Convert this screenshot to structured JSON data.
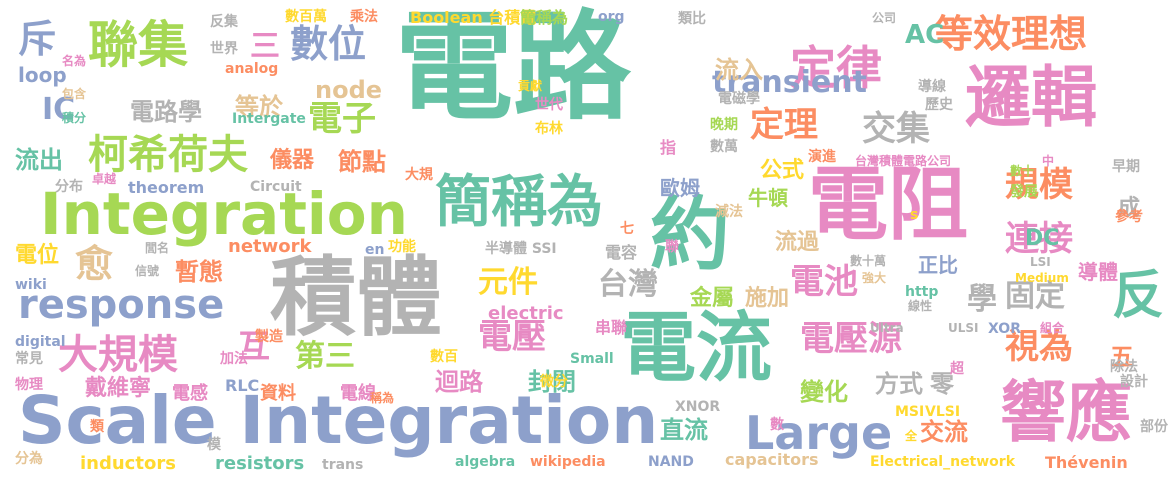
{
  "palette": {
    "teal": "#66c2a5",
    "orange": "#fc8d62",
    "blue": "#8da0cb",
    "pink": "#e78ac3",
    "green": "#a6d854",
    "yellow": "#ffd92f",
    "tan": "#e5c494",
    "gray": "#b3b3b3"
  },
  "words": [
    {
      "text": "電路",
      "color": "teal"
    },
    {
      "text": "積體",
      "color": "gray"
    },
    {
      "text": "Scale Integration",
      "color": "blue"
    },
    {
      "text": "Integration",
      "color": "green"
    },
    {
      "text": "邏輯",
      "color": "pink"
    },
    {
      "text": "電阻",
      "color": "pink"
    },
    {
      "text": "電流",
      "color": "teal"
    },
    {
      "text": "簡稱為",
      "color": "teal"
    },
    {
      "text": "約",
      "color": "teal"
    },
    {
      "text": "響應",
      "color": "pink"
    },
    {
      "text": "response",
      "color": "blue"
    },
    {
      "text": "Large",
      "color": "blue"
    },
    {
      "text": "聯集",
      "color": "green"
    },
    {
      "text": "定律",
      "color": "pink"
    },
    {
      "text": "反",
      "color": "teal"
    },
    {
      "text": "數位",
      "color": "blue"
    },
    {
      "text": "transient",
      "color": "blue"
    },
    {
      "text": "等效理想",
      "color": "orange"
    },
    {
      "text": "柯希荷夫",
      "color": "green"
    },
    {
      "text": "大規模",
      "color": "pink"
    },
    {
      "text": "電子",
      "color": "green"
    },
    {
      "text": "定理",
      "color": "orange"
    },
    {
      "text": "交集",
      "color": "gray"
    },
    {
      "text": "規模",
      "color": "orange"
    },
    {
      "text": "連接",
      "color": "pink"
    },
    {
      "text": "電池",
      "color": "pink"
    },
    {
      "text": "電壓",
      "color": "pink"
    },
    {
      "text": "電壓源",
      "color": "pink"
    },
    {
      "text": "視為",
      "color": "orange"
    },
    {
      "text": "元件",
      "color": "yellow"
    },
    {
      "text": "台灣",
      "color": "gray"
    },
    {
      "text": "學",
      "color": "gray"
    },
    {
      "text": "固定",
      "color": "gray"
    },
    {
      "text": "互",
      "color": "pink"
    },
    {
      "text": "第三",
      "color": "green"
    },
    {
      "text": "愈",
      "color": "tan"
    },
    {
      "text": "AC",
      "color": "teal"
    },
    {
      "text": "IC",
      "color": "blue"
    },
    {
      "text": "DC",
      "color": "teal"
    },
    {
      "text": "node",
      "color": "tan"
    },
    {
      "text": "loop",
      "color": "blue"
    },
    {
      "text": "斥",
      "color": "blue"
    },
    {
      "text": "三",
      "color": "pink"
    },
    {
      "text": "流出",
      "color": "teal"
    },
    {
      "text": "電路學",
      "color": "gray"
    },
    {
      "text": "等於",
      "color": "tan"
    },
    {
      "text": "流入",
      "color": "tan"
    },
    {
      "text": "節點",
      "color": "orange"
    },
    {
      "text": "儀器",
      "color": "orange"
    },
    {
      "text": "電位",
      "color": "yellow"
    },
    {
      "text": "暫態",
      "color": "orange"
    },
    {
      "text": "network",
      "color": "orange"
    },
    {
      "text": "electric",
      "color": "pink"
    },
    {
      "text": "迴路",
      "color": "pink"
    },
    {
      "text": "封閉",
      "color": "teal"
    },
    {
      "text": "變化",
      "color": "green"
    },
    {
      "text": "方式",
      "color": "gray"
    },
    {
      "text": "零",
      "color": "gray"
    },
    {
      "text": "五",
      "color": "orange"
    },
    {
      "text": "直流",
      "color": "teal"
    },
    {
      "text": "交流",
      "color": "orange"
    },
    {
      "text": "導體",
      "color": "pink"
    },
    {
      "text": "施加",
      "color": "tan"
    },
    {
      "text": "金屬",
      "color": "green"
    },
    {
      "text": "流過",
      "color": "tan"
    },
    {
      "text": "正比",
      "color": "blue"
    },
    {
      "text": "牛頓",
      "color": "green"
    },
    {
      "text": "歐姆",
      "color": "blue"
    },
    {
      "text": "公式",
      "color": "yellow"
    },
    {
      "text": "戴維寧",
      "color": "pink"
    },
    {
      "text": "電感",
      "color": "pink"
    },
    {
      "text": "資料",
      "color": "orange"
    },
    {
      "text": "電線",
      "color": "pink"
    },
    {
      "text": "inductors",
      "color": "yellow"
    },
    {
      "text": "resistors",
      "color": "teal"
    },
    {
      "text": "capacitors",
      "color": "tan"
    },
    {
      "text": "Thévenin",
      "color": "orange"
    },
    {
      "text": "Electrical_network",
      "color": "yellow"
    },
    {
      "text": "wikipedia",
      "color": "orange"
    },
    {
      "text": "algebra",
      "color": "teal"
    },
    {
      "text": "NAND",
      "color": "blue"
    },
    {
      "text": "XNOR",
      "color": "gray"
    },
    {
      "text": "trans",
      "color": "gray"
    },
    {
      "text": "分布",
      "color": "gray"
    },
    {
      "text": "theorem",
      "color": "blue"
    },
    {
      "text": "Circuit",
      "color": "gray"
    },
    {
      "text": "串聯",
      "color": "pink"
    },
    {
      "text": "數百",
      "color": "yellow"
    },
    {
      "text": "微分",
      "color": "yellow"
    },
    {
      "text": "Small",
      "color": "teal"
    },
    {
      "text": "電容",
      "color": "gray"
    },
    {
      "text": "半導體 SSI",
      "color": "gray"
    },
    {
      "text": "en",
      "color": "blue"
    },
    {
      "text": "功能",
      "color": "yellow"
    },
    {
      "text": "Boolean 台積電",
      "color": "yellow"
    },
    {
      "text": "簡稱為",
      "color": "green"
    },
    {
      "text": "org",
      "color": "blue"
    },
    {
      "text": "數百萬",
      "color": "yellow"
    },
    {
      "text": "乘法",
      "color": "orange"
    },
    {
      "text": "反集",
      "color": "gray"
    },
    {
      "text": "類比",
      "color": "gray"
    },
    {
      "text": "公司",
      "color": "gray"
    },
    {
      "text": "世界",
      "color": "gray"
    },
    {
      "text": "analog",
      "color": "orange"
    },
    {
      "text": "名為",
      "color": "pink"
    },
    {
      "text": "包含",
      "color": "tan"
    },
    {
      "text": "積分",
      "color": "teal"
    },
    {
      "text": "Intergate",
      "color": "teal"
    },
    {
      "text": "世代",
      "color": "pink"
    },
    {
      "text": "布林",
      "color": "yellow"
    },
    {
      "text": "電磁學",
      "color": "gray"
    },
    {
      "text": "晚期",
      "color": "green"
    },
    {
      "text": "數萬",
      "color": "gray"
    },
    {
      "text": "指",
      "color": "pink"
    },
    {
      "text": "導線",
      "color": "gray"
    },
    {
      "text": "歷史",
      "color": "gray"
    },
    {
      "text": "演進",
      "color": "orange"
    },
    {
      "text": "台灣積體電路公司",
      "color": "pink"
    },
    {
      "text": "中",
      "color": "pink"
    },
    {
      "text": "早期",
      "color": "gray"
    },
    {
      "text": "數十",
      "color": "green"
    },
    {
      "text": "發展",
      "color": "green"
    },
    {
      "text": "成",
      "color": "gray"
    },
    {
      "text": "參考",
      "color": "orange"
    },
    {
      "text": "貢獻",
      "color": "yellow"
    },
    {
      "text": "大規",
      "color": "orange"
    },
    {
      "text": "卓越",
      "color": "pink"
    },
    {
      "text": "減法",
      "color": "tan"
    },
    {
      "text": "七",
      "color": "orange"
    },
    {
      "text": "聯",
      "color": "pink"
    },
    {
      "text": "s",
      "color": "yellow"
    },
    {
      "text": "LSI",
      "color": "gray"
    },
    {
      "text": "數十萬",
      "color": "gray"
    },
    {
      "text": "強大",
      "color": "tan"
    },
    {
      "text": "Medium",
      "color": "yellow"
    },
    {
      "text": "http",
      "color": "teal"
    },
    {
      "text": "線性",
      "color": "gray"
    },
    {
      "text": "Ultra",
      "color": "gray"
    },
    {
      "text": "ULSI",
      "color": "gray"
    },
    {
      "text": "XOR",
      "color": "blue"
    },
    {
      "text": "組合",
      "color": "pink"
    },
    {
      "text": "除法",
      "color": "gray"
    },
    {
      "text": "設計",
      "color": "gray"
    },
    {
      "text": "部份",
      "color": "gray"
    },
    {
      "text": "超",
      "color": "pink"
    },
    {
      "text": "VLSI",
      "color": "yellow"
    },
    {
      "text": "MSI",
      "color": "yellow"
    },
    {
      "text": "全",
      "color": "yellow"
    },
    {
      "text": "數",
      "color": "pink"
    },
    {
      "text": "閭名",
      "color": "gray"
    },
    {
      "text": "信號",
      "color": "gray"
    },
    {
      "text": "wiki",
      "color": "blue"
    },
    {
      "text": "digital",
      "color": "blue"
    },
    {
      "text": "常見",
      "color": "gray"
    },
    {
      "text": "物理",
      "color": "pink"
    },
    {
      "text": "類",
      "color": "orange"
    },
    {
      "text": "分為",
      "color": "tan"
    },
    {
      "text": "製造",
      "color": "orange"
    },
    {
      "text": "加法",
      "color": "pink"
    },
    {
      "text": "RLC",
      "color": "blue"
    },
    {
      "text": "稱為",
      "color": "orange"
    },
    {
      "text": "模",
      "color": "gray"
    }
  ]
}
